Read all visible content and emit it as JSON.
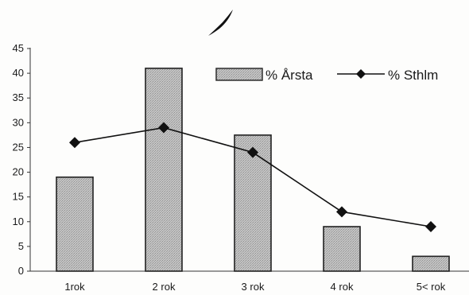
{
  "chart_data": {
    "type": "bar",
    "categories": [
      "1rok",
      "2 rok",
      "3 rok",
      "4 rok",
      "5< rok"
    ],
    "series": [
      {
        "name": "% Årsta",
        "kind": "bar",
        "color": "#b5b5b5",
        "values": [
          19,
          41,
          27.5,
          9,
          3
        ]
      },
      {
        "name": "% Sthlm",
        "kind": "line",
        "color": "#111111",
        "marker": "diamond",
        "values": [
          26,
          29,
          24,
          12,
          9
        ]
      }
    ],
    "ylim": [
      0,
      45
    ],
    "yticks": [
      0,
      5,
      10,
      15,
      20,
      25,
      30,
      35,
      40,
      45
    ],
    "grid": false,
    "legend_position": "top-right"
  },
  "colors": {
    "bar_fill": "#b5b5b5",
    "bar_stroke": "#222222",
    "line": "#111111",
    "axis": "#333333"
  }
}
